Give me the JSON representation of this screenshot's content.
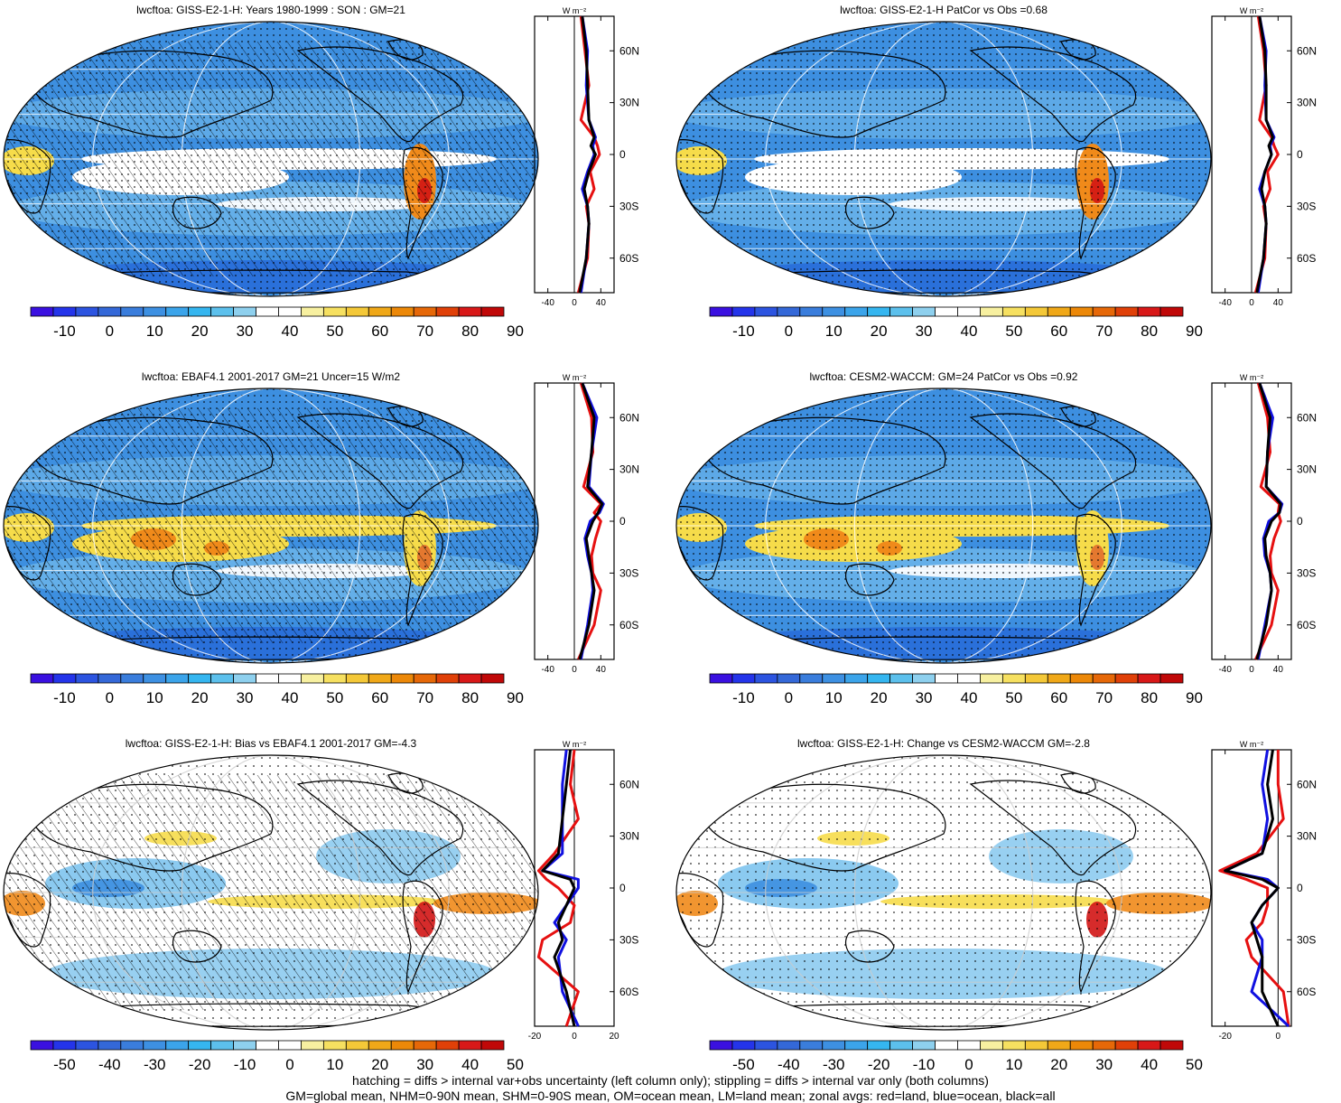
{
  "colors": {
    "ocean_neg": "#1e5bd6",
    "mid_blue": "#3d8fe0",
    "light_blue": "#7ec4ee",
    "white": "#ffffff",
    "yellow": "#f6dc4a",
    "orange": "#f08a1a",
    "red": "#d21414",
    "zonal_land": "#e61010",
    "zonal_ocean": "#1010e0",
    "zonal_all": "#000000"
  },
  "colorbars": {
    "clim": {
      "colors": [
        "#3a10e0",
        "#2434ea",
        "#2c54e0",
        "#3468d8",
        "#3a7ddc",
        "#3d90e2",
        "#3ba4ea",
        "#35b6f0",
        "#5cc0ec",
        "#8ed0ee",
        "#ffffff",
        "#ffffff",
        "#f7f0a0",
        "#f6e060",
        "#f4c838",
        "#f0a818",
        "#ec8808",
        "#e66808",
        "#e04008",
        "#d81818",
        "#c00808"
      ],
      "labels": [
        "-10",
        "0",
        "10",
        "20",
        "30",
        "40",
        "50",
        "60",
        "70",
        "80",
        "90"
      ]
    },
    "diff": {
      "colors": [
        "#3a10e0",
        "#2434ea",
        "#2c54e0",
        "#3468d8",
        "#3a7ddc",
        "#3d90e2",
        "#3ba4ea",
        "#35b6f0",
        "#5cc0ec",
        "#8ed0ee",
        "#ffffff",
        "#ffffff",
        "#f7f0a0",
        "#f6e060",
        "#f4c838",
        "#f0a818",
        "#ec8808",
        "#e66808",
        "#e04008",
        "#d81818",
        "#c00808"
      ],
      "labels": [
        "-50",
        "-40",
        "-30",
        "-20",
        "-10",
        "0",
        "10",
        "20",
        "30",
        "40",
        "50"
      ]
    }
  },
  "panels": [
    {
      "id": "p1",
      "title": "lwcftoa: GISS-E2-1-H: Years 1980-1999 : SON : GM=21",
      "colorbar": "clim",
      "hatch": true,
      "stipple": "dense",
      "zonal_xticks": [
        "-40",
        "0",
        "40"
      ],
      "zonal_xlim": [
        -60,
        60
      ]
    },
    {
      "id": "p2",
      "title": "lwcftoa: GISS-E2-1-H PatCor vs Obs =0.68",
      "colorbar": "clim",
      "hatch": false,
      "stipple": "dense",
      "zonal_xticks": [
        "-40",
        "0",
        "40"
      ],
      "zonal_xlim": [
        -60,
        60
      ]
    },
    {
      "id": "p3",
      "title": "lwcftoa: EBAF4.1 2001-2017 GM=21 Uncer=15 W/m2",
      "colorbar": "clim",
      "hatch": true,
      "stipple": "dense",
      "zonal_xticks": [
        "-40",
        "0",
        "40"
      ],
      "zonal_xlim": [
        -60,
        60
      ]
    },
    {
      "id": "p4",
      "title": "lwcftoa: CESM2-WACCM: GM=24 PatCor vs Obs =0.92",
      "colorbar": "clim",
      "hatch": false,
      "stipple": "dense",
      "zonal_xticks": [
        "-40",
        "0",
        "40"
      ],
      "zonal_xlim": [
        -60,
        60
      ]
    },
    {
      "id": "p5",
      "title": "lwcftoa: GISS-E2-1-H: Bias vs EBAF4.1 2001-2017  GM=-4.3",
      "colorbar": "diff",
      "hatch": true,
      "stipple": "sparse",
      "zonal_xticks": [
        "-20",
        "0",
        "20"
      ],
      "zonal_xlim": [
        -20,
        20
      ]
    },
    {
      "id": "p6",
      "title": "lwcftoa: GISS-E2-1-H: Change vs CESM2-WACCM GM=-2.8",
      "colorbar": "diff",
      "hatch": false,
      "stipple": "sparse",
      "zonal_xticks": [
        "-20",
        "0"
      ],
      "zonal_xlim": [
        -25,
        5
      ]
    }
  ],
  "zonal_units": "W m⁻²",
  "lat_ticks": [
    "60N",
    "30N",
    "0",
    "30S",
    "60S"
  ],
  "footer": [
    "hatching = diffs > internal var+obs uncertainty (left column only); stippling = diffs > internal var only (both columns)",
    "GM=global mean, NHM=0-90N mean, SHM=0-90S mean, OM=ocean mean, LM=land mean; zonal avgs: red=land, blue=ocean, black=all"
  ],
  "chart_data": [
    {
      "type": "heatmap",
      "title": "lwcftoa: GISS-E2-1-H: Years 1980-1999 : SON : GM=21",
      "zonal_mean": {
        "lat": [
          80,
          60,
          40,
          20,
          10,
          5,
          0,
          -10,
          -20,
          -30,
          -40,
          -60,
          -80
        ],
        "all": [
          12,
          18,
          20,
          22,
          30,
          25,
          32,
          22,
          15,
          20,
          22,
          18,
          8
        ],
        "land": [
          10,
          16,
          22,
          10,
          30,
          35,
          38,
          24,
          30,
          18,
          22,
          20,
          6
        ],
        "ocean": [
          12,
          20,
          18,
          22,
          32,
          28,
          30,
          20,
          12,
          20,
          22,
          18,
          10
        ]
      }
    },
    {
      "type": "heatmap",
      "title": "lwcftoa: GISS-E2-1-H PatCor vs Obs =0.68",
      "zonal_mean": {
        "lat": [
          80,
          60,
          40,
          20,
          10,
          5,
          0,
          -10,
          -20,
          -30,
          -40,
          -60,
          -80
        ],
        "all": [
          12,
          20,
          22,
          22,
          32,
          26,
          30,
          20,
          15,
          20,
          22,
          18,
          8
        ],
        "land": [
          10,
          18,
          22,
          12,
          30,
          34,
          40,
          24,
          28,
          18,
          22,
          20,
          6
        ],
        "ocean": [
          12,
          22,
          20,
          22,
          34,
          28,
          30,
          20,
          12,
          20,
          22,
          18,
          10
        ]
      }
    },
    {
      "type": "heatmap",
      "title": "lwcftoa: EBAF4.1 2001-2017 GM=21 Uncer=15 W/m2",
      "zonal_mean": {
        "lat": [
          80,
          60,
          40,
          20,
          10,
          5,
          0,
          -10,
          -20,
          -30,
          -40,
          -60,
          -80
        ],
        "all": [
          12,
          30,
          26,
          20,
          42,
          36,
          28,
          18,
          22,
          26,
          30,
          22,
          8
        ],
        "land": [
          10,
          26,
          28,
          14,
          40,
          30,
          40,
          32,
          26,
          28,
          40,
          30,
          6
        ],
        "ocean": [
          12,
          34,
          26,
          22,
          44,
          38,
          24,
          16,
          20,
          26,
          28,
          20,
          10
        ]
      }
    },
    {
      "type": "heatmap",
      "title": "lwcftoa: CESM2-WACCM: GM=24 PatCor vs Obs =0.92",
      "zonal_mean": {
        "lat": [
          80,
          60,
          40,
          20,
          10,
          5,
          0,
          -10,
          -20,
          -30,
          -40,
          -60,
          -80
        ],
        "all": [
          12,
          28,
          24,
          22,
          44,
          42,
          30,
          20,
          22,
          28,
          30,
          22,
          8
        ],
        "land": [
          10,
          24,
          28,
          14,
          42,
          40,
          44,
          34,
          28,
          30,
          40,
          30,
          6
        ],
        "ocean": [
          12,
          32,
          24,
          22,
          46,
          42,
          26,
          18,
          20,
          28,
          30,
          20,
          10
        ]
      }
    },
    {
      "type": "heatmap",
      "title": "lwcftoa: GISS-E2-1-H: Bias vs EBAF4.1 2001-2017  GM=-4.3",
      "zonal_mean": {
        "lat": [
          80,
          60,
          40,
          20,
          10,
          5,
          0,
          -10,
          -20,
          -30,
          -40,
          -60,
          -80
        ],
        "all": [
          -2,
          -4,
          -6,
          -8,
          -16,
          -2,
          0,
          -4,
          -8,
          -6,
          -10,
          -4,
          0
        ],
        "land": [
          0,
          -2,
          2,
          -10,
          -18,
          -14,
          -8,
          0,
          -2,
          -16,
          -18,
          2,
          -4
        ],
        "ocean": [
          -4,
          -6,
          -6,
          -6,
          -16,
          2,
          2,
          -4,
          -10,
          -4,
          -8,
          -6,
          2
        ]
      }
    },
    {
      "type": "heatmap",
      "title": "lwcftoa: GISS-E2-1-H: Change vs CESM2-WACCM GM=-2.8",
      "zonal_mean": {
        "lat": [
          80,
          60,
          40,
          20,
          10,
          5,
          0,
          -10,
          -20,
          -30,
          -40,
          -60,
          -80
        ],
        "all": [
          -2,
          -4,
          -2,
          -6,
          -20,
          -6,
          0,
          -6,
          -10,
          -8,
          -6,
          -6,
          0
        ],
        "land": [
          0,
          0,
          2,
          -8,
          -22,
          -12,
          -4,
          -4,
          -6,
          -12,
          -10,
          2,
          4
        ],
        "ocean": [
          -4,
          -6,
          -4,
          -6,
          -20,
          -4,
          0,
          -6,
          -10,
          -6,
          -6,
          -10,
          4
        ]
      }
    }
  ]
}
